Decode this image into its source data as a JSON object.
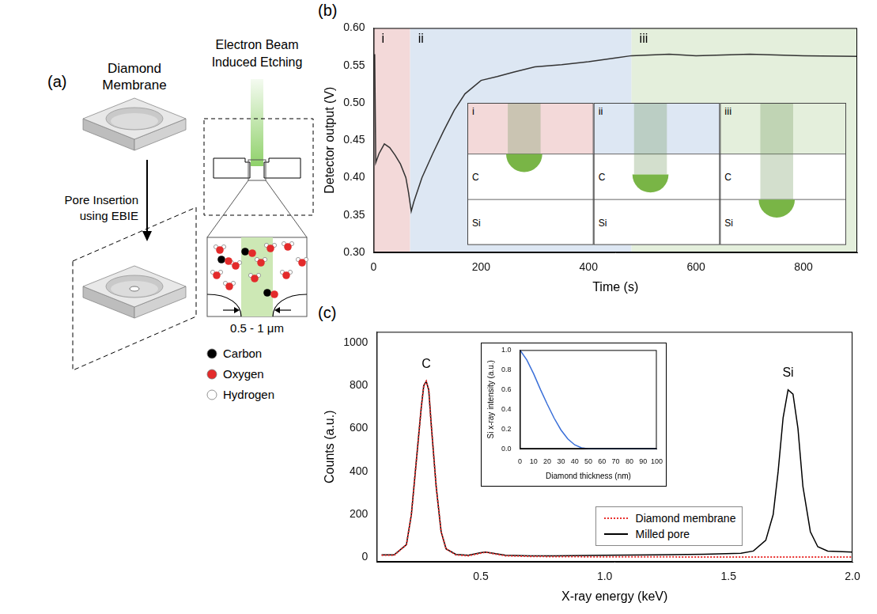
{
  "diagram": {
    "panel": "(a)",
    "membrane_label": "Diamond Membrane",
    "step_label": "Pore Insertion using EBIE",
    "process_label": "Electron Beam Induced Etching",
    "scale_label": "0.5 - 1 μm",
    "legend": [
      {
        "label": "Carbon",
        "color": "#000000"
      },
      {
        "label": "Oxygen",
        "color": "#e32b2b"
      },
      {
        "label": "Hydrogen",
        "color": "#ffffff"
      }
    ]
  },
  "chart_data": [
    {
      "panel": "(b)",
      "type": "line",
      "x_label": "Time (s)",
      "y_label": "Detector output (V)",
      "x": [
        2,
        4,
        10,
        20,
        30,
        40,
        50,
        60,
        65,
        70,
        75,
        90,
        110,
        130,
        150,
        170,
        200,
        230,
        260,
        300,
        350,
        400,
        450,
        480,
        550,
        600,
        700,
        800,
        900
      ],
      "values": [
        0.565,
        0.42,
        0.432,
        0.445,
        0.44,
        0.43,
        0.418,
        0.4,
        0.38,
        0.355,
        0.368,
        0.4,
        0.432,
        0.462,
        0.49,
        0.512,
        0.53,
        0.535,
        0.541,
        0.548,
        0.551,
        0.555,
        0.56,
        0.563,
        0.565,
        0.563,
        0.565,
        0.563,
        0.562
      ],
      "color": "#333333",
      "xlim": [
        0,
        900
      ],
      "xticks": [
        0,
        200,
        400,
        600,
        800
      ],
      "ylim": [
        0.3,
        0.6
      ],
      "yticks": [
        {
          "value": 0.3,
          "label": "0.30"
        },
        0.35,
        {
          "value": 0.4,
          "label": "0.40"
        },
        0.45,
        {
          "value": 0.5,
          "label": "0.50"
        },
        0.55,
        {
          "value": 0.6,
          "label": "0.60"
        }
      ],
      "grid": false,
      "regions": [
        {
          "label": "i",
          "start": 0,
          "end": 68,
          "color": "#f3d9d9"
        },
        {
          "label": "ii",
          "start": 68,
          "end": 480,
          "color": "#dde7f3"
        },
        {
          "label": "iii",
          "start": 480,
          "end": 900,
          "color": "#e4efdc"
        }
      ],
      "inset": {
        "panels": [
          {
            "label": "i",
            "layers": [
              "C",
              "Si"
            ]
          },
          {
            "label": "ii",
            "layers": [
              "C",
              "Si"
            ]
          },
          {
            "label": "iii",
            "layers": [
              "C",
              "Si"
            ]
          }
        ]
      }
    },
    {
      "panel": "(c)",
      "type": "line",
      "x_label": "X-ray energy (keV)",
      "y_label": "Counts (a.u.)",
      "x": [
        0.1,
        0.15,
        0.2,
        0.22,
        0.24,
        0.26,
        0.27,
        0.28,
        0.29,
        0.3,
        0.32,
        0.34,
        0.36,
        0.4,
        0.45,
        0.5,
        0.52,
        0.55,
        0.6,
        0.7,
        0.8,
        1.0,
        1.2,
        1.4,
        1.55,
        1.6,
        1.65,
        1.68,
        1.7,
        1.72,
        1.74,
        1.76,
        1.78,
        1.8,
        1.83,
        1.86,
        1.9,
        2.0
      ],
      "series": [
        {
          "name": "Diamond membrane",
          "color": "#e8312f",
          "line_style": "dotted",
          "values": [
            10,
            10,
            60,
            200,
            450,
            700,
            800,
            820,
            780,
            620,
            330,
            120,
            40,
            12,
            8,
            20,
            25,
            18,
            8,
            5,
            4,
            3,
            3,
            2,
            2,
            2,
            2,
            2,
            2,
            2,
            2,
            2,
            2,
            2,
            2,
            2,
            2,
            2
          ]
        },
        {
          "name": "Milled pore",
          "color": "#000000",
          "line_style": "solid",
          "values": [
            12,
            12,
            60,
            200,
            450,
            700,
            800,
            820,
            780,
            620,
            330,
            120,
            40,
            14,
            10,
            22,
            25,
            20,
            10,
            8,
            8,
            10,
            12,
            15,
            20,
            30,
            80,
            200,
            400,
            650,
            780,
            760,
            600,
            330,
            120,
            50,
            30,
            25
          ]
        }
      ],
      "xlim": [
        0.08,
        2.0
      ],
      "xticks": [
        0.5,
        {
          "value": 1,
          "label": "1.0"
        },
        1.5,
        {
          "value": 2,
          "label": "2.0"
        }
      ],
      "ylim": [
        -20,
        1050
      ],
      "yticks": [
        0,
        200,
        400,
        600,
        800,
        1000
      ],
      "grid": false,
      "legend": "lower right",
      "annotations": [
        {
          "text": "C",
          "x": 0.28,
          "y": 870
        },
        {
          "text": "Si",
          "x": 1.74,
          "y": 830
        }
      ],
      "inset": {
        "type": "line",
        "x_label": "Diamond thickness (nm)",
        "y_label": "Si x-ray intensity (a.u.)",
        "x": [
          0,
          5,
          10,
          15,
          20,
          25,
          30,
          35,
          40,
          45,
          50,
          60,
          70,
          80,
          90,
          100
        ],
        "values": [
          1,
          0.9,
          0.76,
          0.6,
          0.45,
          0.31,
          0.19,
          0.1,
          0.04,
          0.01,
          0,
          0,
          0,
          0,
          0,
          0
        ],
        "color": "#3a6fd8",
        "xlim": [
          0,
          100
        ],
        "xticks": [
          0,
          10,
          20,
          30,
          40,
          50,
          60,
          70,
          80,
          90,
          100
        ],
        "ylim": [
          0,
          1
        ],
        "yticks": [
          {
            "value": 0,
            "label": "0.0"
          },
          0.2,
          0.4,
          0.6,
          0.8,
          {
            "value": 1,
            "label": "1.0"
          }
        ],
        "grid": false
      }
    }
  ]
}
